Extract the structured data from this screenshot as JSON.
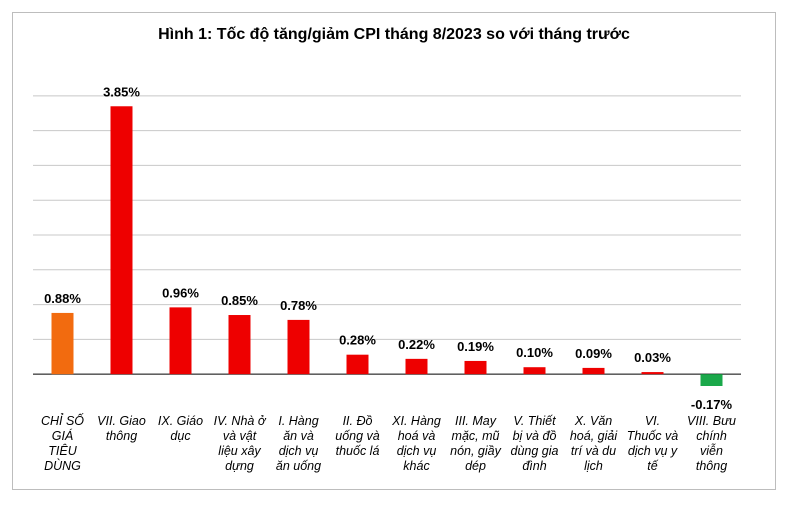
{
  "chart_data": {
    "type": "bar",
    "title": "Hình 1: Tốc độ tăng/giảm CPI tháng 8/2023 so với tháng trước",
    "xlabel": "",
    "ylabel": "",
    "ylim": [
      -0.4,
      4.4
    ],
    "grid": true,
    "legend": "none",
    "categories": [
      [
        "CHỈ SỐ",
        "GIÁ",
        "TIÊU",
        "DÙNG"
      ],
      [
        "VII. Giao",
        "thông"
      ],
      [
        "IX. Giáo",
        "dục"
      ],
      [
        "IV. Nhà ở",
        "và vật",
        "liệu xây",
        "dựng"
      ],
      [
        "I. Hàng",
        "ăn và",
        "dịch vụ",
        "ăn uống"
      ],
      [
        "II. Đồ",
        "uống và",
        "thuốc lá"
      ],
      [
        "XI. Hàng",
        "hoá và",
        "dịch vụ",
        "khác"
      ],
      [
        "III. May",
        "mặc, mũ",
        "nón, giầy",
        "dép"
      ],
      [
        "V. Thiết",
        "bị và đồ",
        "dùng gia",
        "đình"
      ],
      [
        "X. Văn",
        "hoá, giải",
        "trí và du",
        "lịch"
      ],
      [
        "VI.",
        "Thuốc và",
        "dịch vụ y",
        "tế"
      ],
      [
        "VIII. Bưu",
        "chính",
        "viễn",
        "thông"
      ]
    ],
    "values": [
      0.88,
      3.85,
      0.96,
      0.85,
      0.78,
      0.28,
      0.22,
      0.19,
      0.1,
      0.09,
      0.03,
      -0.17
    ],
    "value_labels": [
      "0.88%",
      "3.85%",
      "0.96%",
      "0.85%",
      "0.78%",
      "0.28%",
      "0.22%",
      "0.19%",
      "0.10%",
      "0.09%",
      "0.03%",
      "-0.17%"
    ],
    "colors": {
      "headline": "#f26b0f",
      "positive": "#ee0000",
      "negative": "#1aa84a",
      "grid": "#c8c8c8",
      "axis": "#000000"
    }
  }
}
